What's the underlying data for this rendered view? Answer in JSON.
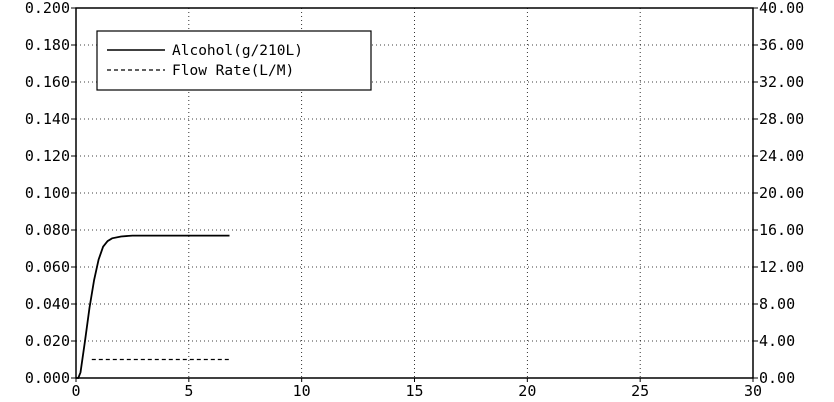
{
  "chart_data": {
    "type": "line",
    "title": "",
    "xlabel": "",
    "ylabel": "",
    "xlim": [
      0,
      30
    ],
    "ylim_left": [
      0,
      0.2
    ],
    "ylim_right": [
      0,
      40
    ],
    "x_ticks": [
      0,
      5,
      10,
      15,
      20,
      25,
      30
    ],
    "x_tick_labels": [
      "0",
      "5",
      "10",
      "15",
      "20",
      "25",
      "30"
    ],
    "y_left_ticks": [
      0,
      0.02,
      0.04,
      0.06,
      0.08,
      0.1,
      0.12,
      0.14,
      0.16,
      0.18,
      0.2
    ],
    "y_left_tick_labels": [
      "0.000",
      "0.020",
      "0.040",
      "0.060",
      "0.080",
      "0.100",
      "0.120",
      "0.140",
      "0.160",
      "0.180",
      "0.200"
    ],
    "y_right_ticks": [
      0,
      4,
      8,
      12,
      16,
      20,
      24,
      28,
      32,
      36,
      40
    ],
    "y_right_tick_labels": [
      "0.00",
      "4.00",
      "8.00",
      "12.00",
      "16.00",
      "20.00",
      "24.00",
      "28.00",
      "32.00",
      "36.00",
      "40.00"
    ],
    "grid": true,
    "legend_position": "top-left",
    "series": [
      {
        "name": "Alcohol(g/210L)",
        "axis": "left",
        "style": "solid",
        "color": "#000000",
        "x": [
          0,
          0.1,
          0.2,
          0.4,
          0.6,
          0.8,
          1.0,
          1.2,
          1.4,
          1.6,
          2.0,
          2.5,
          3.0,
          4.0,
          5.0,
          6.0,
          6.8
        ],
        "y": [
          0.0,
          0.0,
          0.003,
          0.02,
          0.038,
          0.053,
          0.064,
          0.071,
          0.074,
          0.0755,
          0.0765,
          0.077,
          0.077,
          0.077,
          0.077,
          0.077,
          0.077
        ]
      },
      {
        "name": "Flow Rate(L/M)",
        "axis": "right",
        "style": "dashed",
        "color": "#000000",
        "x": [
          0.7,
          6.8
        ],
        "y": [
          2.0,
          2.0
        ]
      }
    ]
  }
}
